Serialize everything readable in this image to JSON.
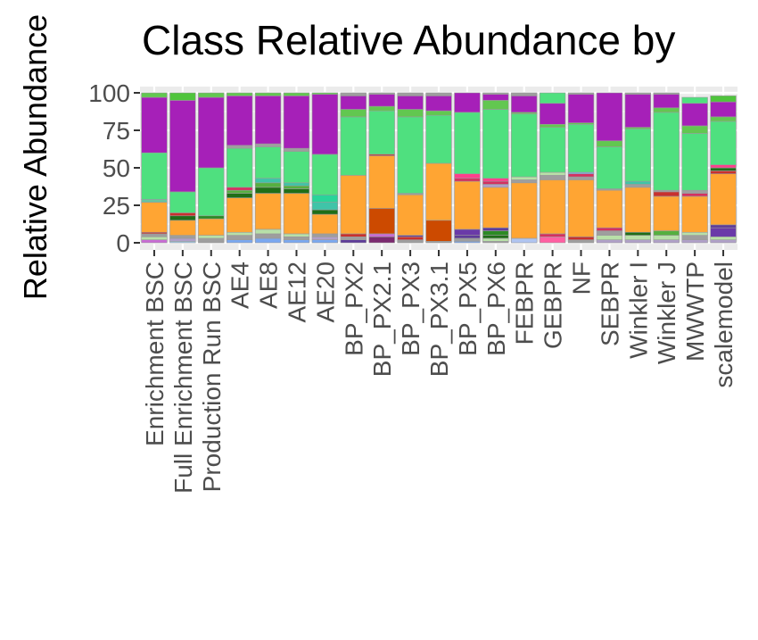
{
  "chart_data": {
    "type": "bar",
    "stacked": true,
    "title": "Class Relative Abundance by",
    "ylabel": "Relative Abundance",
    "xlabel": "",
    "ylim": [
      0,
      100
    ],
    "yticks": [
      0,
      25,
      50,
      75,
      100
    ],
    "grid": true,
    "categories": [
      "Enrichment BSC",
      "Full Enrichment BSC",
      "Production Run BSC",
      "AE4",
      "AE8",
      "AE12",
      "AE20",
      "BP_PX2",
      "BP_PX2.1",
      "BP_PX3",
      "BP_PX3.1",
      "BP_PX5",
      "BP_PX6",
      "FEBPR",
      "GEBPR",
      "NF",
      "SEBPR",
      "Winkler I",
      "Winkler J",
      "MWWTP",
      "scalemodel"
    ],
    "stacks": [
      [
        {
          "value": 2,
          "color": "#c86cd4"
        },
        {
          "value": 2,
          "color": "#b8e0a8"
        },
        {
          "value": 2,
          "color": "#9e9e9e"
        },
        {
          "value": 1,
          "color": "#c8302e"
        },
        {
          "value": 20,
          "color": "#ffa533"
        },
        {
          "value": 2,
          "color": "#67c4a0"
        },
        {
          "value": 31,
          "color": "#4fe07f"
        },
        {
          "value": 37,
          "color": "#a620b8"
        },
        {
          "value": 3,
          "color": "#62c750"
        }
      ],
      [
        {
          "value": 1,
          "color": "#9ecae8"
        },
        {
          "value": 2,
          "color": "#b0a0c8"
        },
        {
          "value": 2,
          "color": "#9e9e9e"
        },
        {
          "value": 10,
          "color": "#ffa533"
        },
        {
          "value": 3,
          "color": "#1f6e18"
        },
        {
          "value": 2,
          "color": "#c8302e"
        },
        {
          "value": 14,
          "color": "#4fe07f"
        },
        {
          "value": 61,
          "color": "#a620b8"
        },
        {
          "value": 5,
          "color": "#4fc43c"
        }
      ],
      [
        {
          "value": 3,
          "color": "#9e9e9e"
        },
        {
          "value": 2,
          "color": "#b8e0a8"
        },
        {
          "value": 11,
          "color": "#ffa533"
        },
        {
          "value": 2,
          "color": "#2c8a24"
        },
        {
          "value": 32,
          "color": "#4fe07f"
        },
        {
          "value": 47,
          "color": "#a620b8"
        },
        {
          "value": 3,
          "color": "#62c750"
        }
      ],
      [
        {
          "value": 2,
          "color": "#7aa8f0"
        },
        {
          "value": 3,
          "color": "#9e9e9e"
        },
        {
          "value": 2,
          "color": "#b8e0a8"
        },
        {
          "value": 23,
          "color": "#ffa533"
        },
        {
          "value": 3,
          "color": "#1f6e18"
        },
        {
          "value": 2,
          "color": "#55b040"
        },
        {
          "value": 2,
          "color": "#d43060"
        },
        {
          "value": 26,
          "color": "#4fe07f"
        },
        {
          "value": 2,
          "color": "#9e9e9e"
        },
        {
          "value": 33,
          "color": "#a620b8"
        },
        {
          "value": 2,
          "color": "#62c750"
        }
      ],
      [
        {
          "value": 3,
          "color": "#7aa8f0"
        },
        {
          "value": 3,
          "color": "#9e9e9e"
        },
        {
          "value": 3,
          "color": "#b8e0a8"
        },
        {
          "value": 24,
          "color": "#ffa533"
        },
        {
          "value": 4,
          "color": "#1f6e18"
        },
        {
          "value": 3,
          "color": "#55b040"
        },
        {
          "value": 3,
          "color": "#3fc4a8"
        },
        {
          "value": 21,
          "color": "#4fe07f"
        },
        {
          "value": 2,
          "color": "#9e9e9e"
        },
        {
          "value": 32,
          "color": "#a620b8"
        },
        {
          "value": 2,
          "color": "#62c750"
        }
      ],
      [
        {
          "value": 2,
          "color": "#7aa8f0"
        },
        {
          "value": 2,
          "color": "#9e9e9e"
        },
        {
          "value": 2,
          "color": "#b8e0a8"
        },
        {
          "value": 27,
          "color": "#ffa533"
        },
        {
          "value": 3,
          "color": "#1f6e18"
        },
        {
          "value": 2,
          "color": "#55b040"
        },
        {
          "value": 2,
          "color": "#3fc4a8"
        },
        {
          "value": 21,
          "color": "#4fe07f"
        },
        {
          "value": 2,
          "color": "#9e9e9e"
        },
        {
          "value": 35,
          "color": "#a620b8"
        },
        {
          "value": 2,
          "color": "#62c750"
        }
      ],
      [
        {
          "value": 2,
          "color": "#7aa8f0"
        },
        {
          "value": 2,
          "color": "#b0a0c8"
        },
        {
          "value": 2,
          "color": "#9e9e9e"
        },
        {
          "value": 13,
          "color": "#ffa533"
        },
        {
          "value": 3,
          "color": "#1f6e18"
        },
        {
          "value": 5,
          "color": "#3fc4a8"
        },
        {
          "value": 5,
          "color": "#29d49a"
        },
        {
          "value": 27,
          "color": "#4fe07f"
        },
        {
          "value": 40,
          "color": "#a620b8"
        },
        {
          "value": 1,
          "color": "#62c750"
        }
      ],
      [
        {
          "value": 2,
          "color": "#5e3c99"
        },
        {
          "value": 2,
          "color": "#9e9e9e"
        },
        {
          "value": 2,
          "color": "#c8302e"
        },
        {
          "value": 39,
          "color": "#ffa533"
        },
        {
          "value": 39,
          "color": "#4fe07f"
        },
        {
          "value": 5,
          "color": "#62c750"
        },
        {
          "value": 9,
          "color": "#a620b8"
        },
        {
          "value": 2,
          "color": "#9e9e9e"
        }
      ],
      [
        {
          "value": 4,
          "color": "#7b2a6f"
        },
        {
          "value": 2,
          "color": "#c86cd4"
        },
        {
          "value": 17,
          "color": "#cc4a00"
        },
        {
          "value": 35,
          "color": "#ffa533"
        },
        {
          "value": 1,
          "color": "#c8302e"
        },
        {
          "value": 29,
          "color": "#4fe07f"
        },
        {
          "value": 3,
          "color": "#62c750"
        },
        {
          "value": 8,
          "color": "#a620b8"
        },
        {
          "value": 1,
          "color": "#9e9e9e"
        }
      ],
      [
        {
          "value": 2,
          "color": "#9e9e9e"
        },
        {
          "value": 2,
          "color": "#c8302e"
        },
        {
          "value": 1,
          "color": "#5e3c99"
        },
        {
          "value": 27,
          "color": "#ffa533"
        },
        {
          "value": 1,
          "color": "#9e9e9e"
        },
        {
          "value": 51,
          "color": "#4fe07f"
        },
        {
          "value": 5,
          "color": "#62c750"
        },
        {
          "value": 9,
          "color": "#a620b8"
        },
        {
          "value": 2,
          "color": "#9e9e9e"
        }
      ],
      [
        {
          "value": 1,
          "color": "#9e9e9e"
        },
        {
          "value": 14,
          "color": "#cc4a00"
        },
        {
          "value": 38,
          "color": "#ffa533"
        },
        {
          "value": 32,
          "color": "#4fe07f"
        },
        {
          "value": 3,
          "color": "#62c750"
        },
        {
          "value": 10,
          "color": "#a620b8"
        },
        {
          "value": 2,
          "color": "#9e9e9e"
        }
      ],
      [
        {
          "value": 1,
          "color": "#7aa8f0"
        },
        {
          "value": 2,
          "color": "#9e9e9e"
        },
        {
          "value": 2,
          "color": "#5e3c99"
        },
        {
          "value": 4,
          "color": "#6a3aa8"
        },
        {
          "value": 32,
          "color": "#ffa533"
        },
        {
          "value": 2,
          "color": "#d43060"
        },
        {
          "value": 3,
          "color": "#ff3f8c"
        },
        {
          "value": 41,
          "color": "#4fe07f"
        },
        {
          "value": 13,
          "color": "#a620b8"
        }
      ],
      [
        {
          "value": 1,
          "color": "#9e9e9e"
        },
        {
          "value": 2,
          "color": "#b8e0a8"
        },
        {
          "value": 2,
          "color": "#1f6e18"
        },
        {
          "value": 3,
          "color": "#2c8a24"
        },
        {
          "value": 2,
          "color": "#5e3c99"
        },
        {
          "value": 27,
          "color": "#ffa533"
        },
        {
          "value": 2,
          "color": "#b0a0c8"
        },
        {
          "value": 2,
          "color": "#d43060"
        },
        {
          "value": 2,
          "color": "#ff3f8c"
        },
        {
          "value": 46,
          "color": "#4fe07f"
        },
        {
          "value": 6,
          "color": "#62c750"
        },
        {
          "value": 4,
          "color": "#a620b8"
        },
        {
          "value": 1,
          "color": "#9e9e9e"
        }
      ],
      [
        {
          "value": 3,
          "color": "#b0c4f0"
        },
        {
          "value": 37,
          "color": "#ffa533"
        },
        {
          "value": 2,
          "color": "#9e9e9e"
        },
        {
          "value": 2,
          "color": "#b8e0a8"
        },
        {
          "value": 42,
          "color": "#4fe07f"
        },
        {
          "value": 1,
          "color": "#62c750"
        },
        {
          "value": 11,
          "color": "#a620b8"
        },
        {
          "value": 2,
          "color": "#9e9e9e"
        }
      ],
      [
        {
          "value": 4,
          "color": "#ff5fa2"
        },
        {
          "value": 2,
          "color": "#d43060"
        },
        {
          "value": 36,
          "color": "#ffa533"
        },
        {
          "value": 3,
          "color": "#9e9e9e"
        },
        {
          "value": 2,
          "color": "#b8e0a8"
        },
        {
          "value": 30,
          "color": "#4fe07f"
        },
        {
          "value": 2,
          "color": "#62c750"
        },
        {
          "value": 14,
          "color": "#a620b8"
        },
        {
          "value": 7,
          "color": "#4fe07f"
        }
      ],
      [
        {
          "value": 2,
          "color": "#9e9e9e"
        },
        {
          "value": 2,
          "color": "#c8302e"
        },
        {
          "value": 38,
          "color": "#ffa533"
        },
        {
          "value": 2,
          "color": "#9e9e9e"
        },
        {
          "value": 2,
          "color": "#d43060"
        },
        {
          "value": 1,
          "color": "#7aa8f0"
        },
        {
          "value": 32,
          "color": "#4fe07f"
        },
        {
          "value": 1,
          "color": "#62c750"
        },
        {
          "value": 19,
          "color": "#a620b8"
        },
        {
          "value": 1,
          "color": "#9e9e9e"
        }
      ],
      [
        {
          "value": 2,
          "color": "#b0a0c8"
        },
        {
          "value": 3,
          "color": "#b8e0a8"
        },
        {
          "value": 3,
          "color": "#9e9e9e"
        },
        {
          "value": 2,
          "color": "#d43060"
        },
        {
          "value": 25,
          "color": "#ffa533"
        },
        {
          "value": 1,
          "color": "#9e9e9e"
        },
        {
          "value": 28,
          "color": "#4fe07f"
        },
        {
          "value": 4,
          "color": "#62c750"
        },
        {
          "value": 32,
          "color": "#a620b8"
        }
      ],
      [
        {
          "value": 2,
          "color": "#b0a0c8"
        },
        {
          "value": 3,
          "color": "#b8e0a8"
        },
        {
          "value": 2,
          "color": "#1f6e18"
        },
        {
          "value": 30,
          "color": "#ffa533"
        },
        {
          "value": 2,
          "color": "#9e9e9e"
        },
        {
          "value": 2,
          "color": "#3fc4a8"
        },
        {
          "value": 35,
          "color": "#4fe07f"
        },
        {
          "value": 1,
          "color": "#62c750"
        },
        {
          "value": 22,
          "color": "#a620b8"
        },
        {
          "value": 1,
          "color": "#9e9e9e"
        }
      ],
      [
        {
          "value": 2,
          "color": "#b0a0c8"
        },
        {
          "value": 3,
          "color": "#b8e0a8"
        },
        {
          "value": 3,
          "color": "#55b040"
        },
        {
          "value": 23,
          "color": "#ffa533"
        },
        {
          "value": 3,
          "color": "#c8302e"
        },
        {
          "value": 1,
          "color": "#9e9e9e"
        },
        {
          "value": 52,
          "color": "#4fe07f"
        },
        {
          "value": 3,
          "color": "#62c750"
        },
        {
          "value": 9,
          "color": "#a620b8"
        },
        {
          "value": 1,
          "color": "#9e9e9e"
        }
      ],
      [
        {
          "value": 2,
          "color": "#b0a0c8"
        },
        {
          "value": 3,
          "color": "#9e9e9e"
        },
        {
          "value": 2,
          "color": "#b8e0a8"
        },
        {
          "value": 24,
          "color": "#ffa533"
        },
        {
          "value": 2,
          "color": "#d43060"
        },
        {
          "value": 2,
          "color": "#9e9e9e"
        },
        {
          "value": 38,
          "color": "#4fe07f"
        },
        {
          "value": 5,
          "color": "#62c750"
        },
        {
          "value": 15,
          "color": "#a620b8"
        },
        {
          "value": 4,
          "color": "#4fe07f"
        }
      ],
      [
        {
          "value": 2,
          "color": "#b0a0c8"
        },
        {
          "value": 2,
          "color": "#b8e0a8"
        },
        {
          "value": 6,
          "color": "#6a3aa8"
        },
        {
          "value": 2,
          "color": "#5e3c99"
        },
        {
          "value": 34,
          "color": "#ffa533"
        },
        {
          "value": 2,
          "color": "#c8302e"
        },
        {
          "value": 2,
          "color": "#1f6e18"
        },
        {
          "value": 2,
          "color": "#ff3f8c"
        },
        {
          "value": 29,
          "color": "#4fe07f"
        },
        {
          "value": 3,
          "color": "#62c750"
        },
        {
          "value": 10,
          "color": "#a620b8"
        },
        {
          "value": 4,
          "color": "#4fc43c"
        }
      ]
    ]
  }
}
